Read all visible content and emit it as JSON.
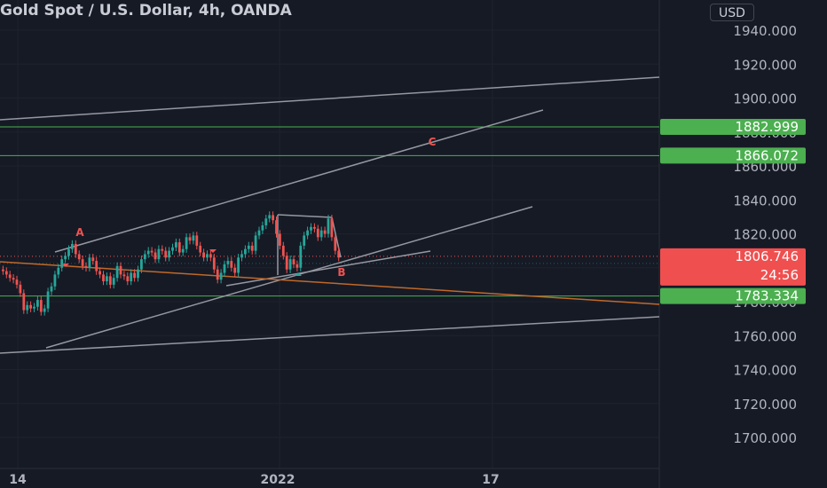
{
  "header": {
    "title": "Gold Spot / U.S. Dollar, 4h, OANDA",
    "currency": "USD"
  },
  "colors": {
    "background": "#161a25",
    "up": "#26a69a",
    "down": "#ef5350",
    "green_label": "#4caf50",
    "red_label": "#f04f4f",
    "trend_gray": "#9598a1",
    "orange_line": "#c0692a",
    "hline_green": "#4caf50"
  },
  "chart_data": {
    "type": "candlestick",
    "title": "Gold Spot / U.S. Dollar, 4h, OANDA",
    "ylim": [
      1692,
      1948
    ],
    "y_ticks": [
      1940,
      1920,
      1900,
      1880,
      1860,
      1840,
      1820,
      1800,
      1780,
      1760,
      1740,
      1720,
      1700
    ],
    "y_tick_labels": [
      "1940.000",
      "1920.000",
      "1900.000",
      "1880.000",
      "1860.000",
      "1840.000",
      "1820.000",
      "1800.000",
      "1780.000",
      "1760.000",
      "1740.000",
      "1720.000",
      "1700.000"
    ],
    "x_tick_labels": [
      "14",
      "2022",
      "17"
    ],
    "price_labels": [
      {
        "text": "1882.999",
        "value": 1882.999,
        "kind": "green"
      },
      {
        "text": "1866.072",
        "value": 1866.072,
        "kind": "green"
      },
      {
        "text": "1806.746",
        "value": 1806.746,
        "kind": "red",
        "countdown": "24:56"
      },
      {
        "text": "1783.334",
        "value": 1783.334,
        "kind": "green"
      }
    ],
    "annotations": [
      "A",
      "B",
      "C"
    ],
    "series": [
      {
        "name": "",
        "values": [
          1798,
          1796,
          1794,
          1793,
          1790,
          1785,
          1775,
          1778,
          1776,
          1777,
          1781,
          1774,
          1776,
          1786,
          1789,
          1796,
          1800,
          1805,
          1807,
          1811,
          1814,
          1808,
          1805,
          1801,
          1800,
          1806,
          1804,
          1798,
          1796,
          1792,
          1795,
          1790,
          1794,
          1801,
          1796,
          1795,
          1792,
          1797,
          1794,
          1799,
          1805,
          1808,
          1810,
          1809,
          1805,
          1811,
          1810,
          1806,
          1810,
          1812,
          1815,
          1809,
          1811,
          1818,
          1816,
          1819,
          1813,
          1809,
          1806,
          1808,
          1806,
          1799,
          1793,
          1797,
          1802,
          1804,
          1800,
          1797,
          1806,
          1808,
          1811,
          1813,
          1810,
          1819,
          1822,
          1825,
          1829,
          1831,
          1828,
          1820,
          1813,
          1807,
          1799,
          1805,
          1802,
          1800,
          1813,
          1819,
          1822,
          1824,
          1823,
          1818,
          1822,
          1820,
          1829,
          1818,
          1810,
          1806
        ]
      }
    ]
  }
}
